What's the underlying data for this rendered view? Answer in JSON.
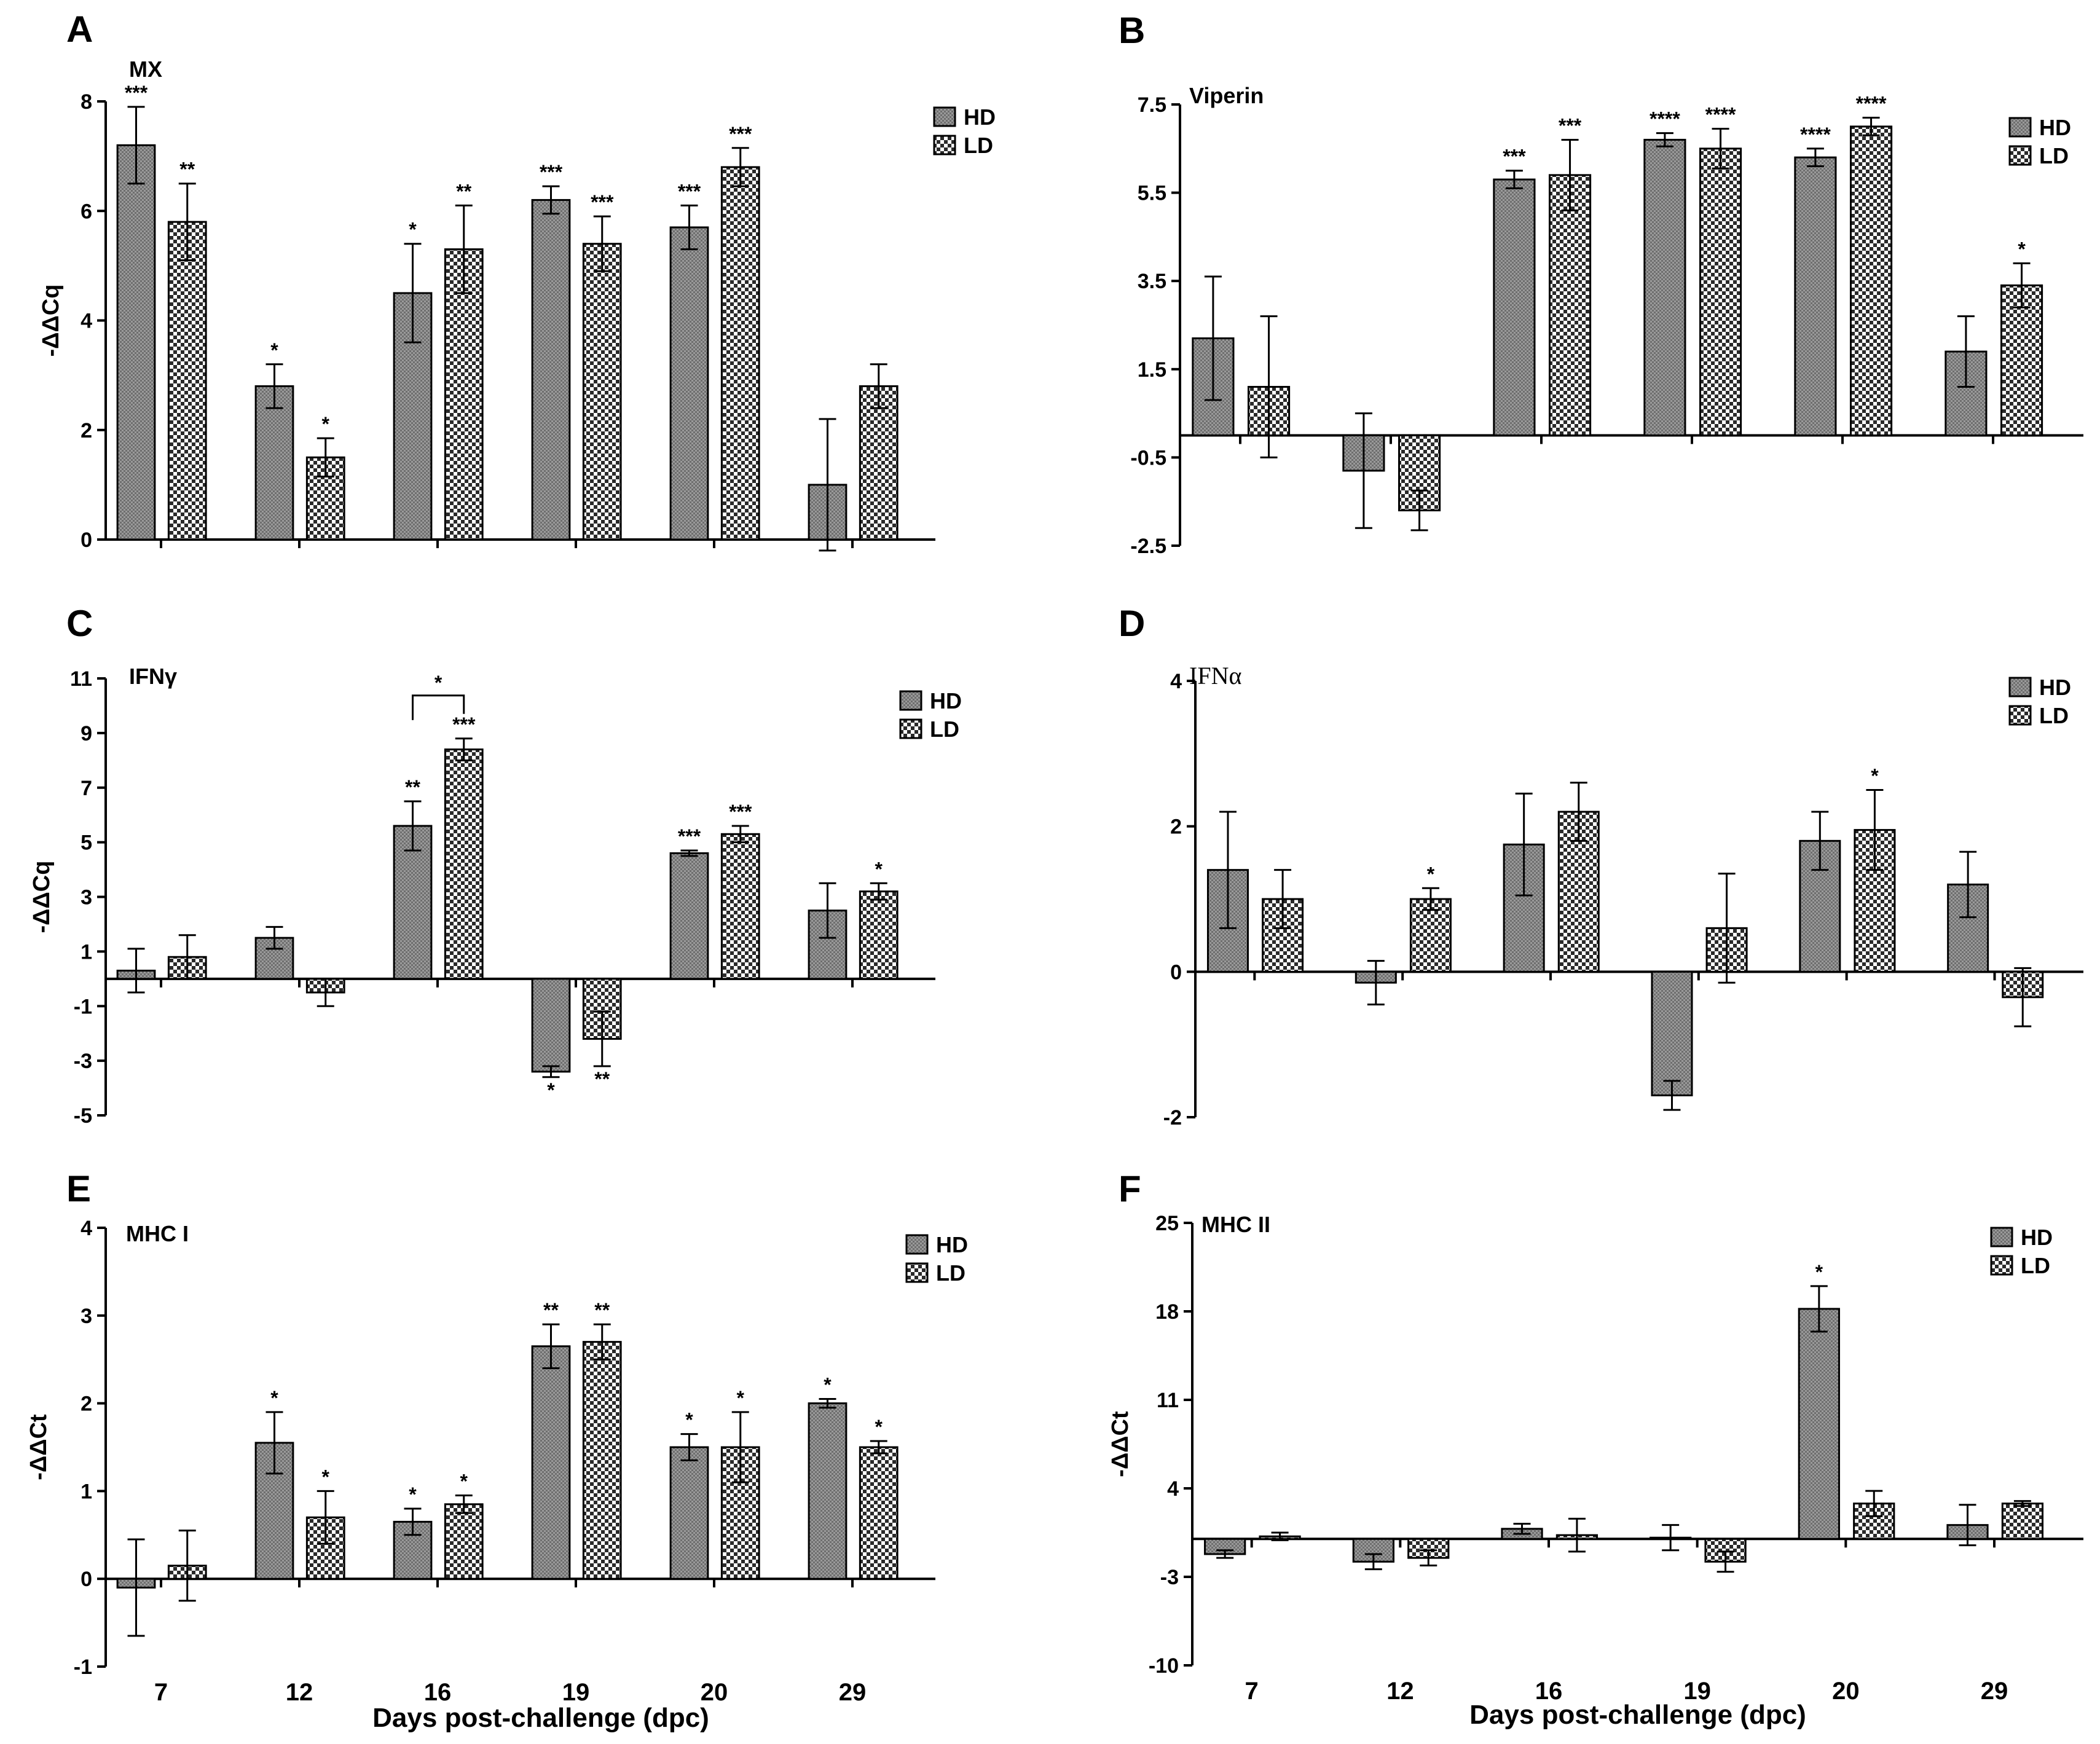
{
  "figure": {
    "x_axis_label": "Days post-challenge (dpc)",
    "legend": [
      "HD",
      "LD"
    ]
  },
  "chart_data": [
    {
      "type": "bar",
      "panel": "A",
      "title": "MX",
      "ylabel": "-ΔΔCq",
      "ylim": [
        0,
        8
      ],
      "yticks": [
        0,
        2,
        4,
        6,
        8
      ],
      "categories": [
        "7",
        "12",
        "16",
        "19",
        "20",
        "29"
      ],
      "series": [
        {
          "name": "HD",
          "values": [
            7.2,
            2.8,
            4.5,
            6.2,
            5.7,
            1.0
          ],
          "errors": [
            0.7,
            0.4,
            0.9,
            0.25,
            0.4,
            1.2
          ],
          "sig": [
            "***",
            "*",
            "*",
            "***",
            "***",
            ""
          ]
        },
        {
          "name": "LD",
          "values": [
            5.8,
            1.5,
            5.3,
            5.4,
            6.8,
            2.8
          ],
          "errors": [
            0.7,
            0.35,
            0.8,
            0.5,
            0.35,
            0.4
          ],
          "sig": [
            "**",
            "*",
            "**",
            "***",
            "***",
            ""
          ]
        }
      ],
      "show_xticks": false
    },
    {
      "type": "bar",
      "panel": "B",
      "title": "Viperin",
      "ylabel": "",
      "ylim": [
        -2.5,
        7.5
      ],
      "yticks": [
        -2.5,
        -0.5,
        1.5,
        3.5,
        5.5,
        7.5
      ],
      "categories": [
        "7",
        "12",
        "16",
        "19",
        "20",
        "29"
      ],
      "series": [
        {
          "name": "HD",
          "values": [
            2.2,
            -0.8,
            5.8,
            6.7,
            6.3,
            1.9
          ],
          "errors": [
            1.4,
            1.3,
            0.2,
            0.15,
            0.2,
            0.8
          ],
          "sig": [
            "",
            "",
            "***",
            "****",
            "****",
            ""
          ]
        },
        {
          "name": "LD",
          "values": [
            1.1,
            -1.7,
            5.9,
            6.5,
            7.0,
            3.4
          ],
          "errors": [
            1.6,
            0.45,
            0.8,
            0.45,
            0.2,
            0.5
          ],
          "sig": [
            "",
            "",
            "***",
            "****",
            "****",
            "*"
          ]
        }
      ],
      "show_xticks": false
    },
    {
      "type": "bar",
      "panel": "C",
      "title": "IFNγ",
      "ylabel": "-ΔΔCq",
      "ylim": [
        -5,
        11
      ],
      "yticks": [
        -5,
        -3,
        -1,
        1,
        3,
        5,
        7,
        9,
        11
      ],
      "categories": [
        "7",
        "12",
        "16",
        "19",
        "20",
        "29"
      ],
      "series": [
        {
          "name": "HD",
          "values": [
            0.3,
            1.5,
            5.6,
            -3.4,
            4.6,
            2.5
          ],
          "errors": [
            0.8,
            0.4,
            0.9,
            0.2,
            0.1,
            1.0
          ],
          "sig": [
            "",
            "",
            "**",
            "*",
            "***",
            ""
          ]
        },
        {
          "name": "LD",
          "values": [
            0.8,
            -0.5,
            8.4,
            -2.2,
            5.3,
            3.2
          ],
          "errors": [
            0.8,
            0.5,
            0.4,
            1.0,
            0.3,
            0.3
          ],
          "sig": [
            "",
            "",
            "***",
            "**",
            "***",
            "*"
          ]
        }
      ],
      "bracket": {
        "group": "16",
        "label": "*"
      },
      "show_xticks": false
    },
    {
      "type": "bar",
      "panel": "D",
      "title": "IFNα",
      "ylabel": "",
      "ylim": [
        -2,
        4
      ],
      "yticks": [
        -2,
        0,
        2,
        4
      ],
      "categories": [
        "7",
        "12",
        "16",
        "19",
        "20",
        "29"
      ],
      "series": [
        {
          "name": "HD",
          "values": [
            1.4,
            -0.15,
            1.75,
            -1.7,
            1.8,
            1.2
          ],
          "errors": [
            0.8,
            0.3,
            0.7,
            0.2,
            0.4,
            0.45
          ],
          "sig": [
            "",
            "",
            "",
            "",
            "",
            ""
          ]
        },
        {
          "name": "LD",
          "values": [
            1.0,
            1.0,
            2.2,
            0.6,
            1.95,
            -0.35
          ],
          "errors": [
            0.4,
            0.15,
            0.4,
            0.75,
            0.55,
            0.4
          ],
          "sig": [
            "",
            "*",
            "",
            "",
            "*",
            ""
          ]
        }
      ],
      "show_xticks": false
    },
    {
      "type": "bar",
      "panel": "E",
      "title": "MHC I",
      "ylabel": "-ΔΔCt",
      "ylim": [
        -1,
        4
      ],
      "yticks": [
        -1,
        0,
        1,
        2,
        3,
        4
      ],
      "categories": [
        "7",
        "12",
        "16",
        "19",
        "20",
        "29"
      ],
      "series": [
        {
          "name": "HD",
          "values": [
            -0.1,
            1.55,
            0.65,
            2.65,
            1.5,
            2.0
          ],
          "errors": [
            0.55,
            0.35,
            0.15,
            0.25,
            0.15,
            0.05
          ],
          "sig": [
            "",
            "*",
            "*",
            "**",
            "*",
            "*"
          ]
        },
        {
          "name": "LD",
          "values": [
            0.15,
            0.7,
            0.85,
            2.7,
            1.5,
            1.5
          ],
          "errors": [
            0.4,
            0.3,
            0.1,
            0.2,
            0.4,
            0.07
          ],
          "sig": [
            "",
            "*",
            "*",
            "**",
            "*",
            "*"
          ]
        }
      ],
      "show_xticks": true
    },
    {
      "type": "bar",
      "panel": "F",
      "title": "MHC II",
      "ylabel": "-ΔΔCt",
      "ylim": [
        -10,
        25
      ],
      "yticks": [
        -10,
        -3,
        4,
        11,
        18,
        25
      ],
      "categories": [
        "7",
        "12",
        "16",
        "19",
        "20",
        "29"
      ],
      "series": [
        {
          "name": "HD",
          "values": [
            -1.2,
            -1.8,
            0.8,
            0.1,
            18.2,
            1.1
          ],
          "errors": [
            0.3,
            0.6,
            0.4,
            1.0,
            1.8,
            1.6
          ],
          "sig": [
            "",
            "",
            "",
            "",
            "*",
            ""
          ]
        },
        {
          "name": "LD",
          "values": [
            0.2,
            -1.5,
            0.3,
            -1.8,
            2.8,
            2.8
          ],
          "errors": [
            0.3,
            0.6,
            1.3,
            0.8,
            1.0,
            0.2
          ],
          "sig": [
            "",
            "",
            "",
            "",
            "",
            ""
          ]
        }
      ],
      "show_xticks": true
    }
  ],
  "colors": {
    "hd_fill": "#8c8c8c",
    "ld_fill_a": "#ffffff",
    "ld_fill_b": "#2a2a2a",
    "axis": "#000000"
  }
}
